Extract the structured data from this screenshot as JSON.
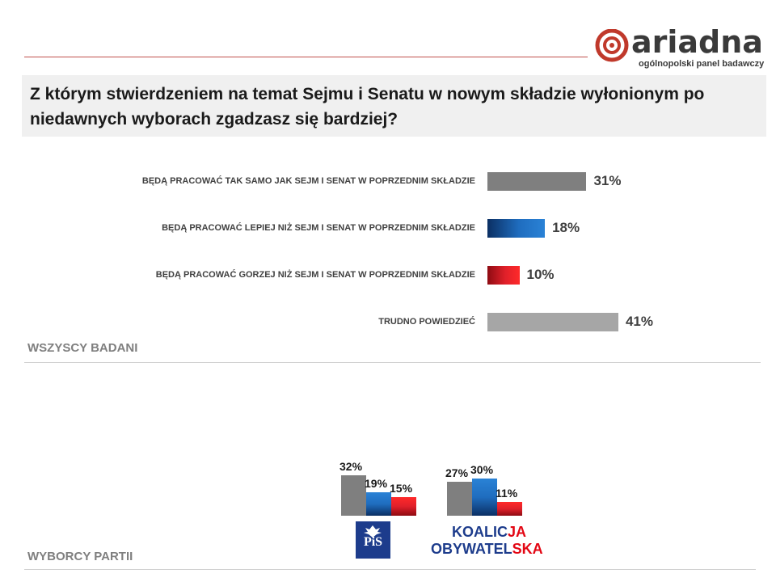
{
  "brand": {
    "name": "ariadna",
    "tagline": "ogólnopolski panel badawczy",
    "accent": "#c0392b"
  },
  "question": "Z którym stwierdzeniem na temat Sejmu i Senatu w nowym składzie wyłonionym po niedawnych wyborach zgadzasz się bardziej?",
  "sections": {
    "all": "WSZYSCY BADANI",
    "parties": "WYBORCY PARTII"
  },
  "chart_data": [
    {
      "type": "bar",
      "orientation": "horizontal",
      "group": "WSZYSCY BADANI",
      "categories": [
        "BĘDĄ PRACOWAĆ TAK SAMO JAK SEJM I SENAT W POPRZEDNIM SKŁADZIE",
        "BĘDĄ PRACOWAĆ LEPIEJ NIŻ SEJM I SENAT W POPRZEDNIM SKŁADZIE",
        "BĘDĄ PRACOWAĆ GORZEJ NIŻ SEJM I SENAT W POPRZEDNIM SKŁADZIE",
        "TRUDNO POWIEDZIEĆ"
      ],
      "values": [
        31,
        18,
        10,
        41
      ],
      "labels": [
        "31%",
        "18%",
        "10%",
        "41%"
      ],
      "colors": [
        "#7f7f7f",
        "#1f6dbf",
        "#e0202a",
        "#a6a6a6"
      ],
      "xlim": [
        0,
        100
      ]
    },
    {
      "type": "bar",
      "group": "WYBORCY PARTII",
      "categories": [
        "PiS",
        "KOALICJA OBYWATELSKA"
      ],
      "series": [
        {
          "values": [
            32,
            27
          ],
          "labels": [
            "32%",
            "27%"
          ],
          "color": "#7f7f7f"
        },
        {
          "values": [
            19,
            30
          ],
          "labels": [
            "19%",
            "30%"
          ],
          "color": "#1f6dbf"
        },
        {
          "values": [
            15,
            11
          ],
          "labels": [
            "15%",
            "11%"
          ],
          "color": "#e0202a"
        }
      ],
      "ylim": [
        0,
        100
      ]
    }
  ],
  "party_logos": {
    "pis": "PiS",
    "ko_line1_a": "KOALIC",
    "ko_line1_b": "JA",
    "ko_line2_a": "OBYWATEL",
    "ko_line2_b": "SKA"
  }
}
